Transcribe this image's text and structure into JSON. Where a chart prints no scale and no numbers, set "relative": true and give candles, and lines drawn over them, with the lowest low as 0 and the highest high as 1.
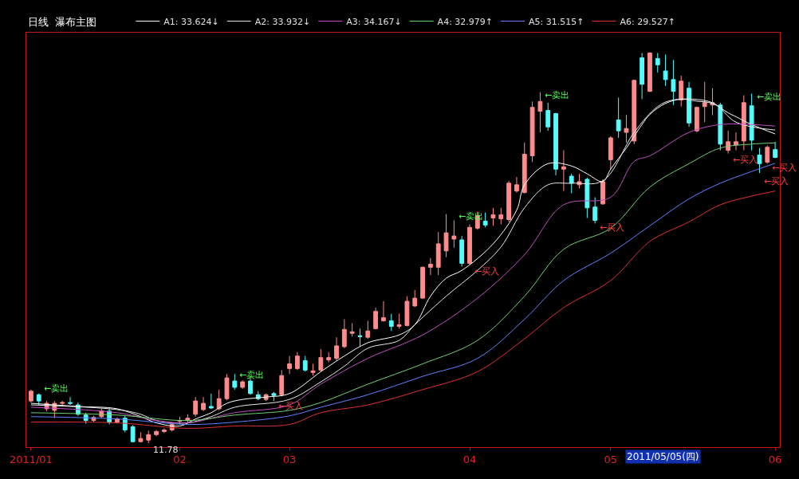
{
  "chart_data": {
    "type": "candlestick",
    "title": "日线  瀑布主图",
    "relative": true,
    "tick_labels": "x",
    "legend": "top left",
    "grid": false,
    "categories": [
      "2011/01",
      null,
      null,
      null,
      null,
      null,
      null,
      null,
      null,
      null,
      null,
      null,
      null,
      null,
      null,
      null,
      null,
      null,
      null,
      "02",
      null,
      null,
      null,
      null,
      null,
      null,
      null,
      null,
      null,
      null,
      null,
      null,
      null,
      "03",
      null,
      null,
      null,
      null,
      null,
      null,
      null,
      null,
      null,
      null,
      null,
      null,
      null,
      null,
      null,
      null,
      null,
      null,
      null,
      null,
      null,
      null,
      "04",
      null,
      null,
      null,
      null,
      null,
      null,
      null,
      null,
      null,
      null,
      null,
      null,
      null,
      null,
      null,
      null,
      null,
      "05",
      null,
      null,
      null,
      null,
      null,
      null,
      null,
      null,
      null,
      null,
      null,
      null,
      null,
      null,
      null,
      null,
      null,
      null,
      null,
      null,
      "06"
    ],
    "ohlc": [
      [
        0.108,
        0.137,
        0.104,
        0.133
      ],
      [
        0.124,
        0.127,
        0.098,
        0.108
      ],
      [
        0.088,
        0.108,
        0.082,
        0.102
      ],
      [
        0.084,
        0.108,
        0.064,
        0.102
      ],
      [
        0.102,
        0.108,
        0.098,
        0.104
      ],
      [
        0.104,
        0.118,
        0.098,
        0.102
      ],
      [
        0.098,
        0.104,
        0.07,
        0.074
      ],
      [
        0.072,
        0.078,
        0.05,
        0.058
      ],
      [
        0.058,
        0.07,
        0.054,
        0.066
      ],
      [
        0.068,
        0.088,
        0.064,
        0.082
      ],
      [
        0.082,
        0.088,
        0.048,
        0.054
      ],
      [
        0.054,
        0.066,
        0.05,
        0.062
      ],
      [
        0.064,
        0.07,
        0.028,
        0.034
      ],
      [
        0.042,
        0.046,
        0.002,
        0.004
      ],
      [
        0.004,
        0.028,
        0.002,
        0.012
      ],
      [
        0.008,
        0.032,
        0,
        0.022
      ],
      [
        0.022,
        0.034,
        0.018,
        0.03
      ],
      [
        0.03,
        0.038,
        0.026,
        0.034
      ],
      [
        0.034,
        0.054,
        0.03,
        0.048
      ],
      [
        0.056,
        0.068,
        0.048,
        0.058
      ],
      [
        0.058,
        0.074,
        0.052,
        0.064
      ],
      [
        0.074,
        0.118,
        0.068,
        0.108
      ],
      [
        0.086,
        0.118,
        0.082,
        0.102
      ],
      [
        0.094,
        0.127,
        0.088,
        0.09
      ],
      [
        0.088,
        0.137,
        0.084,
        0.114
      ],
      [
        0.114,
        0.177,
        0.11,
        0.167
      ],
      [
        0.159,
        0.177,
        0.137,
        0.143
      ],
      [
        0.143,
        0.161,
        0.139,
        0.157
      ],
      [
        0.159,
        0.167,
        0.124,
        0.127
      ],
      [
        0.124,
        0.133,
        0.11,
        0.114
      ],
      [
        0.112,
        0.127,
        0.108,
        0.124
      ],
      [
        0.127,
        0.131,
        0.108,
        0.122
      ],
      [
        0.124,
        0.187,
        0.12,
        0.173
      ],
      [
        0.191,
        0.223,
        0.177,
        0.203
      ],
      [
        0.191,
        0.233,
        0.187,
        0.223
      ],
      [
        0.211,
        0.223,
        0.183,
        0.187
      ],
      [
        0.181,
        0.203,
        0.173,
        0.185
      ],
      [
        0.187,
        0.241,
        0.183,
        0.219
      ],
      [
        0.213,
        0.233,
        0.207,
        0.219
      ],
      [
        0.217,
        0.271,
        0.211,
        0.249
      ],
      [
        0.247,
        0.317,
        0.243,
        0.291
      ],
      [
        0.281,
        0.307,
        0.273,
        0.285
      ],
      [
        0.275,
        0.293,
        0.247,
        0.273
      ],
      [
        0.271,
        0.313,
        0.267,
        0.287
      ],
      [
        0.293,
        0.347,
        0.291,
        0.337
      ],
      [
        0.313,
        0.363,
        0.311,
        0.321
      ],
      [
        0.313,
        0.331,
        0.287,
        0.299
      ],
      [
        0.299,
        0.331,
        0.293,
        0.303
      ],
      [
        0.301,
        0.376,
        0.299,
        0.363
      ],
      [
        0.351,
        0.392,
        0.349,
        0.371
      ],
      [
        0.371,
        0.452,
        0.369,
        0.45
      ],
      [
        0.45,
        0.474,
        0.43,
        0.458
      ],
      [
        0.45,
        0.54,
        0.43,
        0.51
      ],
      [
        0.492,
        0.586,
        0.476,
        0.538
      ],
      [
        0.522,
        0.57,
        0.5,
        0.53
      ],
      [
        0.52,
        0.53,
        0.452,
        0.46
      ],
      [
        0.46,
        0.56,
        0.456,
        0.552
      ],
      [
        0.55,
        0.592,
        0.546,
        0.582
      ],
      [
        0.568,
        0.59,
        0.552,
        0.558
      ],
      [
        0.576,
        0.602,
        0.556,
        0.584
      ],
      [
        0.574,
        0.602,
        0.56,
        0.584
      ],
      [
        0.572,
        0.671,
        0.566,
        0.665
      ],
      [
        0.645,
        0.681,
        0.641,
        0.661
      ],
      [
        0.641,
        0.769,
        0.639,
        0.739
      ],
      [
        0.735,
        0.874,
        0.719,
        0.859
      ],
      [
        0.849,
        0.898,
        0.795,
        0.874
      ],
      [
        0.851,
        0.871,
        0.799,
        0.809
      ],
      [
        0.843,
        0.845,
        0.685,
        0.701
      ],
      [
        0.701,
        0.749,
        0.645,
        0.707
      ],
      [
        0.683,
        0.689,
        0.639,
        0.665
      ],
      [
        0.661,
        0.689,
        0.651,
        0.669
      ],
      [
        0.675,
        0.679,
        0.576,
        0.602
      ],
      [
        0.604,
        0.629,
        0.562,
        0.57
      ],
      [
        0.612,
        0.675,
        0.61,
        0.669
      ],
      [
        0.725,
        0.785,
        0.701,
        0.781
      ],
      [
        0.827,
        0.884,
        0.781,
        0.799
      ],
      [
        0.795,
        0.839,
        0.769,
        0.805
      ],
      [
        0.773,
        0.93,
        0.765,
        0.928
      ],
      [
        0.986,
        0.998,
        0.88,
        0.918
      ],
      [
        0.9,
        1.0,
        0.898,
        0.998
      ],
      [
        0.984,
        0.998,
        0.948,
        0.968
      ],
      [
        0.952,
        0.994,
        0.914,
        0.93
      ],
      [
        0.93,
        0.98,
        0.865,
        0.9
      ],
      [
        0.878,
        0.94,
        0.861,
        0.926
      ],
      [
        0.908,
        0.924,
        0.809,
        0.819
      ],
      [
        0.799,
        0.861,
        0.795,
        0.859
      ],
      [
        0.861,
        0.924,
        0.821,
        0.871
      ],
      [
        0.865,
        0.908,
        0.839,
        0.871
      ],
      [
        0.865,
        0.871,
        0.749,
        0.765
      ],
      [
        0.749,
        0.799,
        0.741,
        0.771
      ],
      [
        0.763,
        0.795,
        0.749,
        0.771
      ],
      [
        0.773,
        0.89,
        0.749,
        0.871
      ],
      [
        0.863,
        0.894,
        0.749,
        0.775
      ],
      [
        0.737,
        0.755,
        0.691,
        0.715
      ],
      [
        0.719,
        0.761,
        0.715,
        0.757
      ],
      [
        0.751,
        0.771,
        0.729,
        0.731
      ]
    ],
    "colors": [
      "#ff8c8c",
      "#54fcfc",
      "#ff8c8c",
      "#ff8c8c",
      "#ff8c8c",
      "#54fcfc",
      "#54fcfc",
      "#54fcfc",
      "#ff8c8c",
      "#ff8c8c",
      "#54fcfc",
      "#ff8c8c",
      "#54fcfc",
      "#54fcfc",
      "#ff8c8c",
      "#ff8c8c",
      "#ff8c8c",
      "#ff8c8c",
      "#ff8c8c",
      "#ff8c8c",
      "#ff8c8c",
      "#ff8c8c",
      "#ff8c8c",
      "#54fcfc",
      "#ff8c8c",
      "#ff8c8c",
      "#54fcfc",
      "#ff8c8c",
      "#54fcfc",
      "#54fcfc",
      "#ff8c8c",
      "#54fcfc",
      "#ff8c8c",
      "#ff8c8c",
      "#ff8c8c",
      "#54fcfc",
      "#ff8c8c",
      "#ff8c8c",
      "#ff8c8c",
      "#ff8c8c",
      "#ff8c8c",
      "#ff8c8c",
      "#54fcfc",
      "#ff8c8c",
      "#ff8c8c",
      "#ff8c8c",
      "#54fcfc",
      "#ff8c8c",
      "#ff8c8c",
      "#ff8c8c",
      "#ff8c8c",
      "#ff8c8c",
      "#ff8c8c",
      "#ff8c8c",
      "#ff8c8c",
      "#54fcfc",
      "#ff8c8c",
      "#ff8c8c",
      "#54fcfc",
      "#ff8c8c",
      "#ff8c8c",
      "#ff8c8c",
      "#ff8c8c",
      "#ff8c8c",
      "#ff8c8c",
      "#ff8c8c",
      "#54fcfc",
      "#54fcfc",
      "#ff8c8c",
      "#54fcfc",
      "#ff8c8c",
      "#54fcfc",
      "#54fcfc",
      "#ff8c8c",
      "#ff8c8c",
      "#54fcfc",
      "#ff8c8c",
      "#ff8c8c",
      "#54fcfc",
      "#ff8c8c",
      "#54fcfc",
      "#54fcfc",
      "#54fcfc",
      "#ff8c8c",
      "#54fcfc",
      "#ff8c8c",
      "#ff8c8c",
      "#ff8c8c",
      "#54fcfc",
      "#ff8c8c",
      "#ff8c8c",
      "#ff8c8c",
      "#54fcfc",
      "#54fcfc",
      "#ff8c8c",
      "#54fcfc"
    ],
    "series": [
      {
        "name": "A1: 33.624↓",
        "type": "line",
        "color": "#ffffff",
        "values": [
          0.102,
          null,
          null,
          null,
          null,
          null,
          0.094,
          null,
          null,
          null,
          null,
          0.088,
          null,
          null,
          0.068,
          null,
          0.052,
          null,
          null,
          0.044,
          null,
          0.062,
          null,
          0.078,
          null,
          0.102,
          null,
          0.112,
          null,
          null,
          0.118,
          null,
          null,
          0.127,
          null,
          null,
          null,
          0.183,
          null,
          null,
          0.223,
          null,
          null,
          0.257,
          null,
          null,
          null,
          0.277,
          null,
          0.303,
          null,
          0.376,
          null,
          0.422,
          null,
          0.442,
          null,
          null,
          null,
          0.51,
          null,
          null,
          0.596,
          0.661,
          null,
          null,
          0.715,
          null,
          null,
          0.709,
          null,
          0.689,
          null,
          0.669,
          0.701,
          null,
          0.755,
          null,
          0.815,
          0.841,
          null,
          0.869,
          null,
          0.88,
          null,
          0.875,
          null,
          0.869,
          null,
          0.845,
          0.835,
          null,
          0.815,
          null,
          null,
          0.791
        ]
      },
      {
        "name": "A2: 33.932↓",
        "type": "line",
        "color": "#e8e8e8",
        "values": [
          0.098,
          null,
          null,
          null,
          null,
          null,
          null,
          null,
          null,
          null,
          null,
          0.086,
          null,
          null,
          0.074,
          null,
          0.058,
          null,
          null,
          null,
          0.052,
          null,
          null,
          0.068,
          null,
          null,
          0.092,
          null,
          null,
          null,
          null,
          null,
          null,
          0.112,
          null,
          null,
          null,
          0.157,
          null,
          null,
          0.197,
          null,
          null,
          0.243,
          null,
          null,
          null,
          0.263,
          null,
          0.303,
          null,
          null,
          null,
          0.376,
          null,
          null,
          null,
          0.442,
          null,
          null,
          0.502,
          null,
          null,
          0.602,
          null,
          null,
          0.661,
          null,
          null,
          0.665,
          null,
          null,
          null,
          0.671,
          null,
          null,
          null,
          0.795,
          null,
          null,
          0.861,
          null,
          0.878,
          null,
          null,
          null,
          null,
          0.871,
          null,
          null,
          0.821,
          null,
          null,
          null,
          null,
          0.801
        ]
      },
      {
        "name": "A3: 34.167↓",
        "type": "line",
        "color": "#c050c0",
        "values": [
          0.092,
          null,
          null,
          null,
          null,
          null,
          null,
          null,
          null,
          null,
          null,
          0.078,
          null,
          null,
          null,
          null,
          0.058,
          null,
          null,
          null,
          0.052,
          null,
          null,
          null,
          null,
          null,
          0.078,
          null,
          null,
          null,
          null,
          null,
          null,
          0.098,
          null,
          null,
          null,
          0.151,
          null,
          null,
          null,
          null,
          null,
          0.217,
          null,
          null,
          null,
          null,
          null,
          null,
          0.277,
          null,
          null,
          null,
          null,
          null,
          null,
          0.371,
          null,
          null,
          null,
          null,
          null,
          0.482,
          null,
          null,
          null,
          null,
          0.61,
          null,
          null,
          null,
          null,
          null,
          0.629,
          null,
          null,
          0.721,
          null,
          0.735,
          null,
          null,
          null,
          null,
          0.795,
          null,
          null,
          null,
          0.815,
          null,
          null,
          null,
          0.815,
          null,
          null,
          0.811
        ]
      },
      {
        "name": "A4: 32.979↑",
        "type": "line",
        "color": "#70d070",
        "values": [
          0.078,
          null,
          null,
          null,
          null,
          null,
          null,
          null,
          null,
          null,
          null,
          0.072,
          null,
          null,
          null,
          null,
          null,
          null,
          null,
          null,
          0.058,
          null,
          null,
          null,
          null,
          null,
          0.072,
          null,
          null,
          null,
          null,
          null,
          null,
          0.084,
          null,
          null,
          null,
          0.104,
          null,
          null,
          null,
          null,
          null,
          0.151,
          null,
          null,
          null,
          null,
          null,
          null,
          0.203,
          null,
          null,
          null,
          null,
          null,
          null,
          0.263,
          null,
          null,
          null,
          null,
          null,
          0.376,
          null,
          null,
          null,
          null,
          0.496,
          null,
          null,
          null,
          null,
          null,
          0.55,
          null,
          null,
          null,
          null,
          0.655,
          null,
          null,
          null,
          null,
          0.715,
          null,
          null,
          null,
          0.755,
          null,
          null,
          null,
          0.765,
          null,
          null,
          0.768
        ]
      },
      {
        "name": "A5: 31.515↑",
        "type": "line",
        "color": "#6080ff",
        "values": [
          0.068,
          null,
          null,
          null,
          null,
          null,
          null,
          null,
          null,
          null,
          null,
          0.062,
          null,
          null,
          null,
          null,
          null,
          null,
          null,
          null,
          0.048,
          null,
          null,
          null,
          null,
          null,
          0.054,
          null,
          null,
          null,
          null,
          null,
          null,
          0.07,
          null,
          null,
          null,
          0.092,
          null,
          null,
          null,
          null,
          null,
          0.124,
          null,
          null,
          null,
          null,
          null,
          null,
          0.171,
          null,
          null,
          null,
          null,
          null,
          null,
          0.217,
          null,
          null,
          null,
          null,
          null,
          0.317,
          null,
          null,
          null,
          null,
          0.416,
          null,
          null,
          null,
          null,
          null,
          0.486,
          null,
          null,
          null,
          null,
          0.556,
          null,
          null,
          null,
          null,
          0.625,
          null,
          null,
          null,
          0.665,
          null,
          null,
          null,
          0.695,
          null,
          null,
          0.716
        ]
      },
      {
        "name": "A6: 29.527↑",
        "type": "line",
        "color": "#e03030",
        "values": [
          0.054,
          null,
          null,
          null,
          null,
          null,
          null,
          null,
          null,
          null,
          null,
          0.052,
          null,
          null,
          null,
          null,
          null,
          null,
          null,
          null,
          0.038,
          null,
          null,
          null,
          null,
          null,
          0.044,
          null,
          null,
          null,
          null,
          null,
          null,
          0.048,
          null,
          null,
          null,
          0.078,
          null,
          null,
          null,
          null,
          null,
          0.098,
          null,
          null,
          null,
          null,
          null,
          null,
          0.137,
          null,
          null,
          null,
          null,
          null,
          null,
          0.183,
          null,
          null,
          null,
          null,
          null,
          0.267,
          null,
          null,
          null,
          null,
          0.347,
          null,
          null,
          null,
          null,
          null,
          0.416,
          null,
          null,
          null,
          null,
          0.516,
          null,
          null,
          null,
          null,
          0.566,
          null,
          null,
          null,
          0.61,
          null,
          null,
          null,
          0.632,
          null,
          null,
          0.645
        ]
      }
    ],
    "annotations": [
      "←卖出",
      "←卖出",
      "←卖出",
      "←卖出",
      "←卖出",
      "←买入",
      "←买入",
      "←买入",
      "←买入",
      "←买入",
      "←买入",
      "11.78",
      "2011/05/05(四)"
    ]
  }
}
